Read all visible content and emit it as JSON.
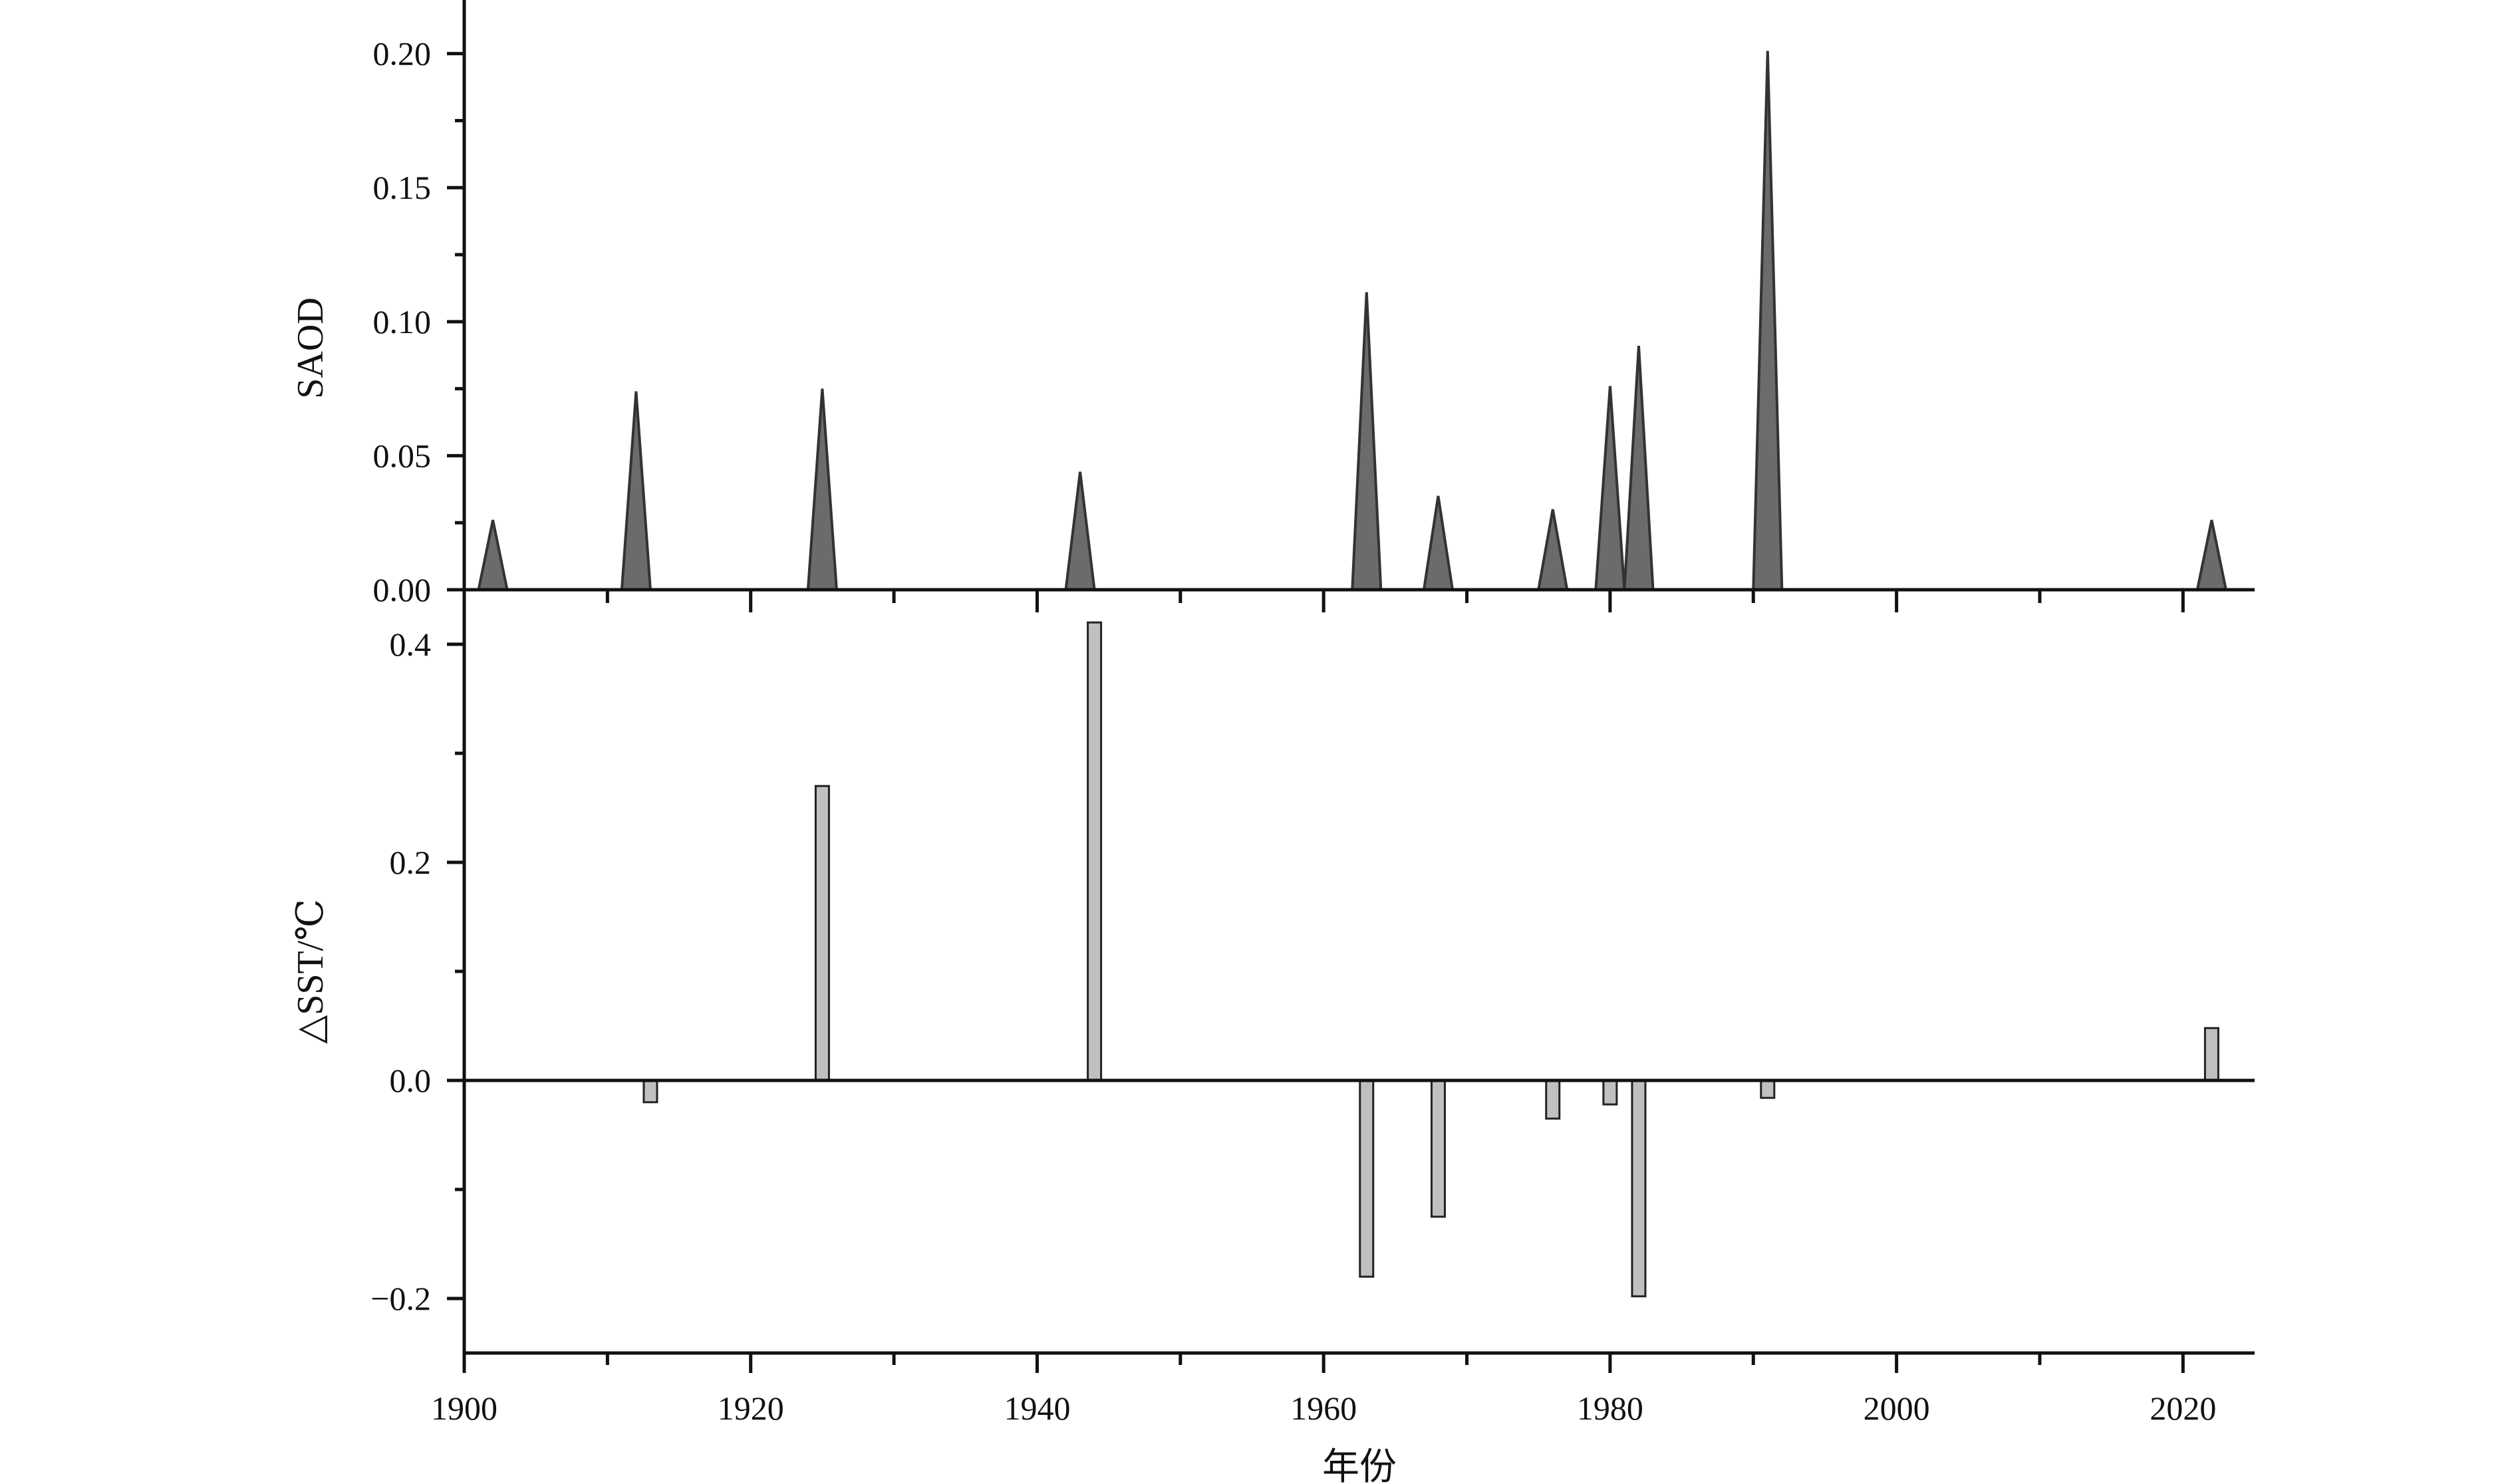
{
  "chart_data": [
    {
      "type": "area",
      "panel": "top",
      "ylabel": "SAOD",
      "ylim": [
        0,
        0.22
      ],
      "yticks": [
        0.0,
        0.05,
        0.1,
        0.15,
        0.2
      ],
      "ytick_labels": [
        "0.00",
        "0.05",
        "0.10",
        "0.15",
        "0.20"
      ],
      "xlim": [
        1900,
        2025
      ],
      "fill_color": "#6b6b6b",
      "series": [
        {
          "peaks": [
            {
              "year": 1902,
              "value": 0.026
            },
            {
              "year": 1912,
              "value": 0.074
            },
            {
              "year": 1925,
              "value": 0.075
            },
            {
              "year": 1943,
              "value": 0.044
            },
            {
              "year": 1963,
              "value": 0.111
            },
            {
              "year": 1968,
              "value": 0.035
            },
            {
              "year": 1976,
              "value": 0.03
            },
            {
              "year": 1980,
              "value": 0.076
            },
            {
              "year": 1982,
              "value": 0.091
            },
            {
              "year": 1991,
              "value": 0.201
            },
            {
              "year": 2022,
              "value": 0.026
            }
          ]
        }
      ]
    },
    {
      "type": "bar",
      "panel": "bottom",
      "ylabel": "△SST/℃",
      "xlabel": "年份",
      "ylim": [
        -0.25,
        0.45
      ],
      "yticks": [
        -0.2,
        0.0,
        0.2,
        0.4
      ],
      "ytick_labels": [
        "−0.2",
        "0.0",
        "0.2",
        "0.4"
      ],
      "xlim": [
        1900,
        2025
      ],
      "xticks": [
        1900,
        1920,
        1940,
        1960,
        1980,
        2000,
        2020
      ],
      "xtick_labels": [
        "1900",
        "1920",
        "1940",
        "1960",
        "1980",
        "2000",
        "2020"
      ],
      "bar_color": "#c0c0c0",
      "categories": [
        1913,
        1925,
        1944,
        1963,
        1968,
        1976,
        1980,
        1982,
        1991,
        2022
      ],
      "values": [
        -0.02,
        0.27,
        0.42,
        -0.18,
        -0.125,
        -0.035,
        -0.022,
        -0.198,
        -0.016,
        0.048
      ]
    }
  ]
}
